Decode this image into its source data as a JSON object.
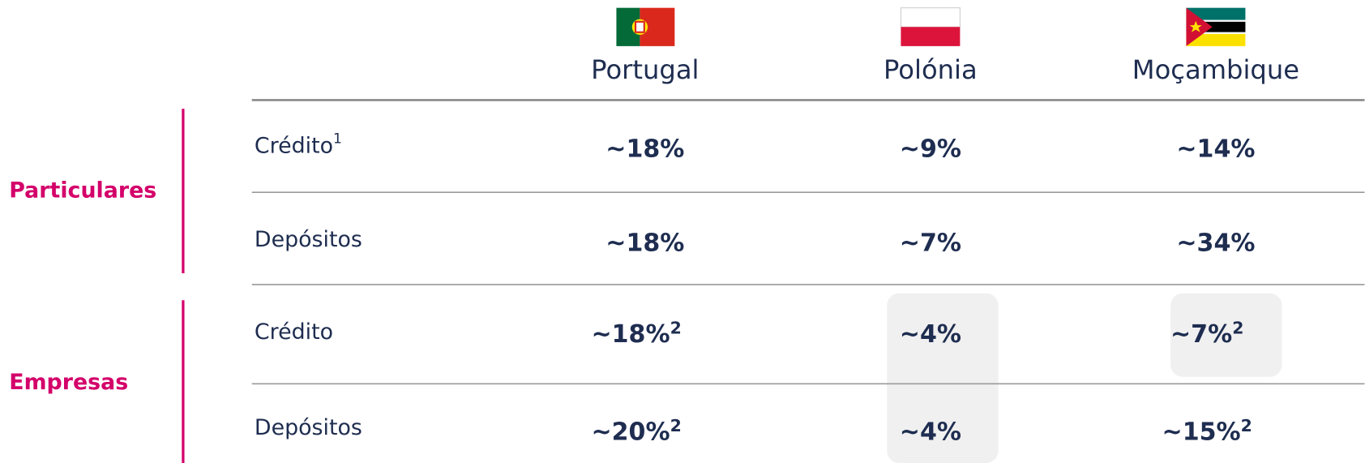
{
  "table": {
    "columns": [
      "Portugal",
      "Polónia",
      "Moçambique"
    ],
    "groups": [
      {
        "name": "Particulares",
        "rows": [
          {
            "label": "Crédito",
            "note": "1",
            "cells": [
              {
                "text": "~18%"
              },
              {
                "text": "~9%"
              },
              {
                "text": "~14%"
              }
            ]
          },
          {
            "label": "Depósitos",
            "cells": [
              {
                "text": "~18%"
              },
              {
                "text": "~7%"
              },
              {
                "text": "~34%"
              }
            ]
          }
        ]
      },
      {
        "name": "Empresas",
        "rows": [
          {
            "label": "Crédito",
            "cells": [
              {
                "text": "~18%",
                "note": "2"
              },
              {
                "text": "~4%"
              },
              {
                "text": "~7%",
                "note": "2"
              }
            ]
          },
          {
            "label": "Depósitos",
            "cells": [
              {
                "text": "~20%",
                "note": "2"
              },
              {
                "text": "~4%"
              },
              {
                "text": "~15%",
                "note": "2"
              }
            ]
          }
        ]
      }
    ]
  }
}
